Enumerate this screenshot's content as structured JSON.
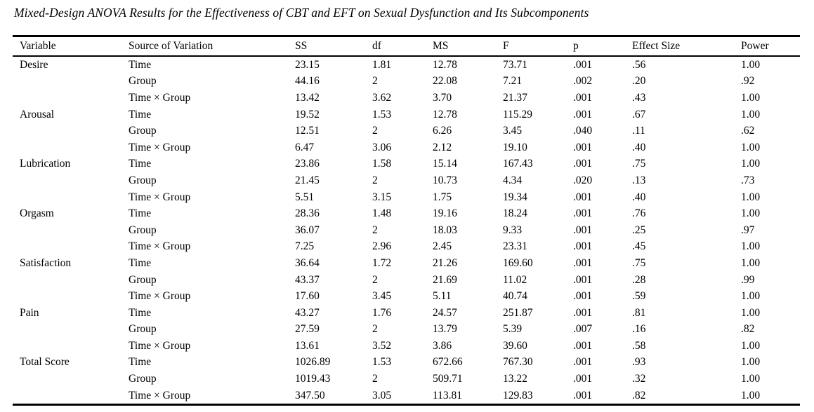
{
  "title": "Mixed-Design ANOVA Results for the Effectiveness of CBT and EFT on Sexual Dysfunction and Its Subcomponents",
  "table": {
    "columns": [
      "Variable",
      "Source of Variation",
      "SS",
      "df",
      "MS",
      "F",
      "p",
      "Effect Size",
      "Power"
    ],
    "column_keys": [
      "variable",
      "source",
      "ss",
      "df",
      "ms",
      "f",
      "p",
      "effect-size",
      "power"
    ],
    "rows": [
      [
        "Desire",
        "Time",
        "23.15",
        "1.81",
        "12.78",
        "73.71",
        ".001",
        ".56",
        "1.00"
      ],
      [
        "",
        "Group",
        "44.16",
        "2",
        "22.08",
        "7.21",
        ".002",
        ".20",
        ".92"
      ],
      [
        "",
        "Time × Group",
        "13.42",
        "3.62",
        "3.70",
        "21.37",
        ".001",
        ".43",
        "1.00"
      ],
      [
        "Arousal",
        "Time",
        "19.52",
        "1.53",
        "12.78",
        "115.29",
        ".001",
        ".67",
        "1.00"
      ],
      [
        "",
        "Group",
        "12.51",
        "2",
        "6.26",
        "3.45",
        ".040",
        ".11",
        ".62"
      ],
      [
        "",
        "Time × Group",
        "6.47",
        "3.06",
        "2.12",
        "19.10",
        ".001",
        ".40",
        "1.00"
      ],
      [
        "Lubrication",
        "Time",
        "23.86",
        "1.58",
        "15.14",
        "167.43",
        ".001",
        ".75",
        "1.00"
      ],
      [
        "",
        "Group",
        "21.45",
        "2",
        "10.73",
        "4.34",
        ".020",
        ".13",
        ".73"
      ],
      [
        "",
        "Time × Group",
        "5.51",
        "3.15",
        "1.75",
        "19.34",
        ".001",
        ".40",
        "1.00"
      ],
      [
        "Orgasm",
        "Time",
        "28.36",
        "1.48",
        "19.16",
        "18.24",
        ".001",
        ".76",
        "1.00"
      ],
      [
        "",
        "Group",
        "36.07",
        "2",
        "18.03",
        "9.33",
        ".001",
        ".25",
        ".97"
      ],
      [
        "",
        "Time × Group",
        "7.25",
        "2.96",
        "2.45",
        "23.31",
        ".001",
        ".45",
        "1.00"
      ],
      [
        "Satisfaction",
        "Time",
        "36.64",
        "1.72",
        "21.26",
        "169.60",
        ".001",
        ".75",
        "1.00"
      ],
      [
        "",
        "Group",
        "43.37",
        "2",
        "21.69",
        "11.02",
        ".001",
        ".28",
        ".99"
      ],
      [
        "",
        "Time × Group",
        "17.60",
        "3.45",
        "5.11",
        "40.74",
        ".001",
        ".59",
        "1.00"
      ],
      [
        "Pain",
        "Time",
        "43.27",
        "1.76",
        "24.57",
        "251.87",
        ".001",
        ".81",
        "1.00"
      ],
      [
        "",
        "Group",
        "27.59",
        "2",
        "13.79",
        "5.39",
        ".007",
        ".16",
        ".82"
      ],
      [
        "",
        "Time × Group",
        "13.61",
        "3.52",
        "3.86",
        "39.60",
        ".001",
        ".58",
        "1.00"
      ],
      [
        "Total Score",
        "Time",
        "1026.89",
        "1.53",
        "672.66",
        "767.30",
        ".001",
        ".93",
        "1.00"
      ],
      [
        "",
        "Group",
        "1019.43",
        "2",
        "509.71",
        "13.22",
        ".001",
        ".32",
        "1.00"
      ],
      [
        "",
        "Time × Group",
        "347.50",
        "3.05",
        "113.81",
        "129.83",
        ".001",
        ".82",
        "1.00"
      ]
    ]
  }
}
